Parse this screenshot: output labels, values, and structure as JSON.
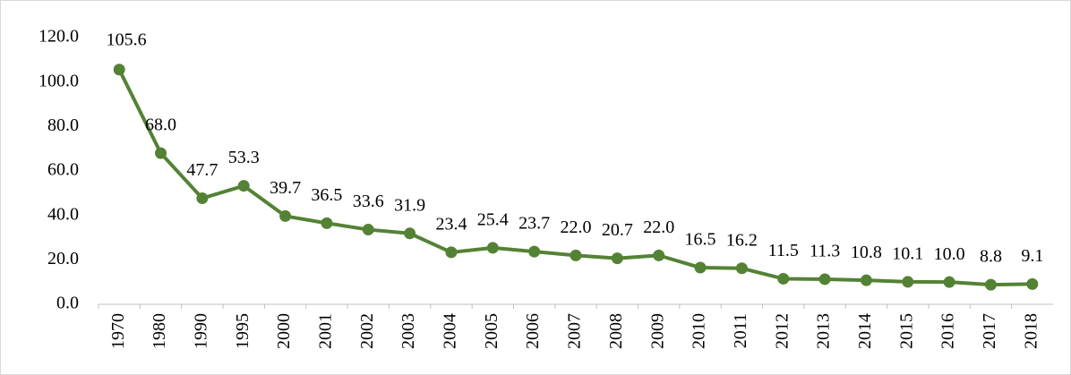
{
  "chart_data": {
    "type": "line",
    "categories": [
      "1970",
      "1980",
      "1990",
      "1995",
      "2000",
      "2001",
      "2002",
      "2003",
      "2004",
      "2005",
      "2006",
      "2007",
      "2008",
      "2009",
      "2010",
      "2011",
      "2012",
      "2013",
      "2014",
      "2015",
      "2016",
      "2017",
      "2018"
    ],
    "series": [
      {
        "color": "#548235",
        "values": [
          105.6,
          68.0,
          47.7,
          53.3,
          39.7,
          36.5,
          33.6,
          31.9,
          23.4,
          25.4,
          23.7,
          22.0,
          20.7,
          22.0,
          16.5,
          16.2,
          11.5,
          11.3,
          10.8,
          10.1,
          10.0,
          8.8,
          9.1
        ],
        "value_labels": [
          "105.6",
          "68.0",
          "47.7",
          "53.3",
          "39.7",
          "36.5",
          "33.6",
          "31.9",
          "23.4",
          "25.4",
          "23.7",
          "22.0",
          "20.7",
          "22.0",
          "16.5",
          "16.2",
          "11.5",
          "11.3",
          "10.8",
          "10.1",
          "10.0",
          "8.8",
          "9.1"
        ]
      }
    ],
    "ylim": [
      0,
      120
    ],
    "yticks": [
      {
        "value": 0,
        "label": "0.0"
      },
      {
        "value": 20,
        "label": "20.0"
      },
      {
        "value": 40,
        "label": "40.0"
      },
      {
        "value": 60,
        "label": "60.0"
      },
      {
        "value": 80,
        "label": "80.0"
      },
      {
        "value": 100,
        "label": "100.0"
      },
      {
        "value": 120,
        "label": "120.0"
      }
    ],
    "grid": false
  }
}
